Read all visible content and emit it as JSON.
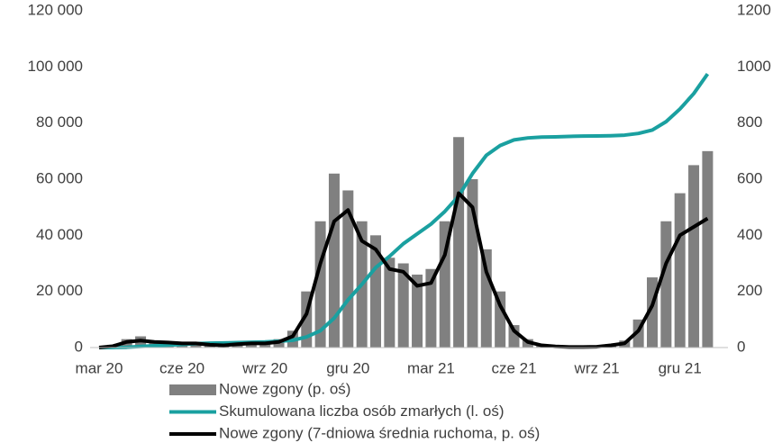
{
  "chart_data": {
    "type": "combo",
    "categories": [
      "mar 20",
      null,
      null,
      null,
      null,
      null,
      "cze 20",
      null,
      null,
      null,
      null,
      null,
      "wrz 20",
      null,
      null,
      null,
      null,
      null,
      "gru 20",
      null,
      null,
      null,
      null,
      null,
      "mar 21",
      null,
      null,
      null,
      null,
      null,
      "cze 21",
      null,
      null,
      null,
      null,
      null,
      "wrz 21",
      null,
      null,
      null,
      null,
      null,
      "gru 21",
      null,
      null
    ],
    "series": [
      {
        "name": "Nowe zgony (p. oś)",
        "type": "bar",
        "axis": "y2",
        "color": "#808080",
        "values": [
          0,
          10,
          30,
          40,
          25,
          20,
          20,
          15,
          10,
          10,
          15,
          20,
          20,
          30,
          60,
          200,
          450,
          620,
          560,
          450,
          400,
          320,
          300,
          260,
          280,
          450,
          750,
          600,
          350,
          200,
          80,
          30,
          12,
          6,
          4,
          4,
          5,
          12,
          25,
          100,
          250,
          450,
          550,
          650,
          700
        ]
      },
      {
        "name": "Skumulowana liczba osób zmarłych (l. oś)",
        "type": "line",
        "axis": "y",
        "color": "#1aa0a0",
        "values": [
          0,
          20,
          100,
          400,
          650,
          900,
          1100,
          1400,
          1550,
          1650,
          1750,
          1900,
          2000,
          2250,
          2600,
          3800,
          6000,
          10500,
          17000,
          22500,
          28500,
          32500,
          37000,
          40500,
          44000,
          48500,
          54000,
          62000,
          68500,
          72000,
          74000,
          74700,
          75000,
          75100,
          75250,
          75350,
          75400,
          75500,
          75700,
          76300,
          77500,
          80500,
          85000,
          90500,
          97500
        ]
      },
      {
        "name": "Nowe zgony (7-dniowa średnia ruchoma, p. oś)",
        "type": "line",
        "axis": "y2",
        "color": "#000000",
        "values": [
          0,
          5,
          20,
          25,
          20,
          18,
          15,
          15,
          10,
          8,
          12,
          15,
          15,
          20,
          40,
          120,
          300,
          450,
          490,
          380,
          350,
          280,
          270,
          220,
          230,
          330,
          550,
          500,
          270,
          150,
          60,
          20,
          8,
          4,
          2,
          2,
          3,
          8,
          15,
          60,
          150,
          300,
          400,
          430,
          460
        ]
      }
    ],
    "ylim": [
      0,
      120000
    ],
    "yticks": [
      0,
      {
        "value": 20000,
        "label": "20 000"
      },
      {
        "value": 40000,
        "label": "40 000"
      },
      {
        "value": 60000,
        "label": "60 000"
      },
      {
        "value": 80000,
        "label": "80 000"
      },
      {
        "value": 100000,
        "label": "100 000"
      },
      {
        "value": 120000,
        "label": "120 000"
      }
    ],
    "y2lim": [
      0,
      1200
    ],
    "y2ticks": [
      0,
      200,
      400,
      600,
      800,
      1000,
      1200
    ]
  }
}
